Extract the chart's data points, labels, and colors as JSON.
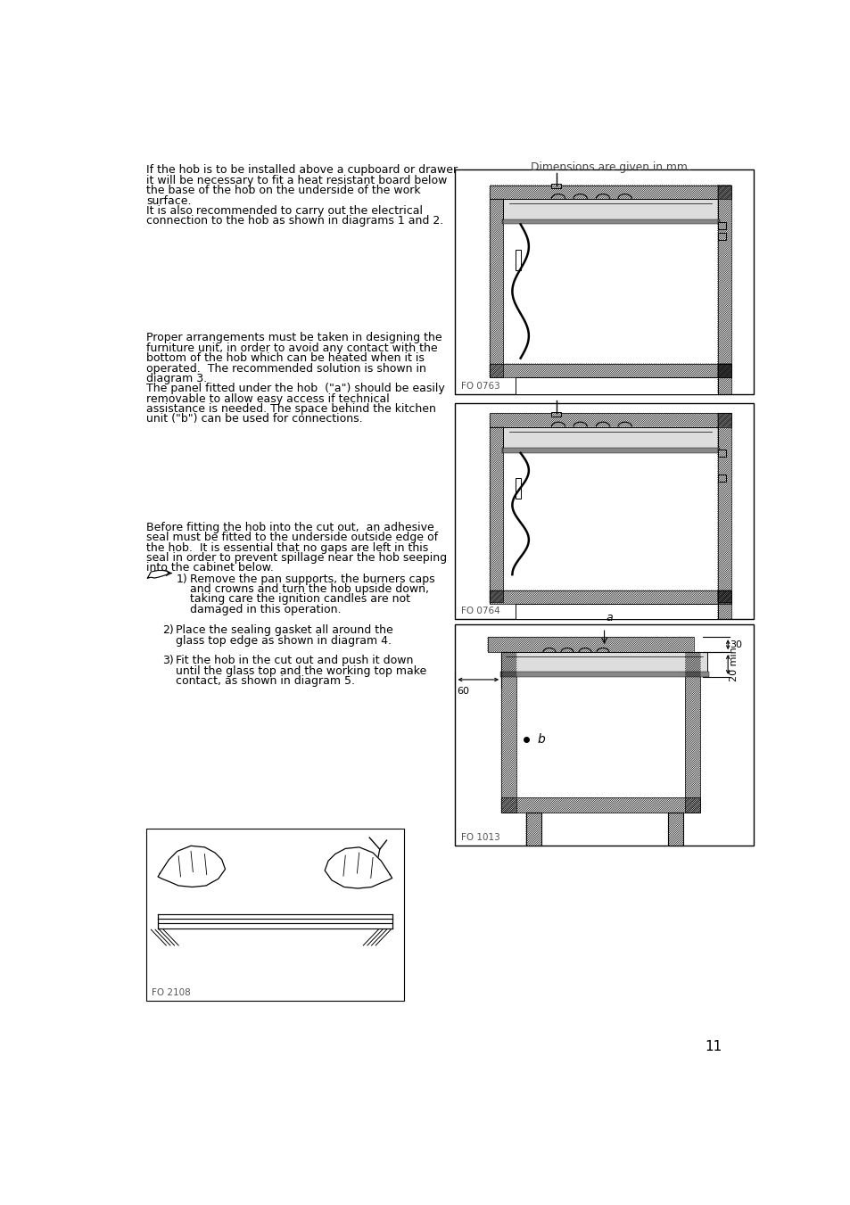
{
  "page_width": 9.54,
  "page_height": 13.51,
  "background_color": "#ffffff",
  "text_color": "#000000",
  "page_number": "11",
  "dim_text": "Dimensions are given in mm.",
  "diagram_labels": [
    "FO 0763",
    "FO 0764",
    "FO 1013",
    "FO 2108"
  ],
  "block1_text": [
    "If the hob is to be installed above a cupboard or drawer",
    "it will be necessary to fit a heat resistant board below",
    "the base of the hob on the underside of the work",
    "surface.",
    "It is also recommended to carry out the electrical",
    "connection to the hob as shown in diagrams 1 and 2."
  ],
  "block2_text": [
    "Proper arrangements must be taken in designing the",
    "furniture unit, in order to avoid any contact with the",
    "bottom of the hob which can be heated when it is",
    "operated.  The recommended solution is shown in",
    "diagram 3.",
    "The panel fitted under the hob  (\"a\") should be easily",
    "removable to allow easy access if technical",
    "assistance is needed. The space behind the kitchen",
    "unit (\"b\") can be used for connections."
  ],
  "block3_text": [
    "Before fitting the hob into the cut out,  an adhesive",
    "seal must be fitted to the underside outside edge of",
    "the hob.  It is essential that no gaps are left in this",
    "seal in order to prevent spillage near the hob seeping",
    "into the cabinet below."
  ],
  "item1_text": [
    "Remove the pan supports, the burners caps",
    "and crowns and turn the hob upside down,",
    "taking care the ignition candles are not",
    "damaged in this operation."
  ],
  "item2_text": [
    "Place the sealing gasket all around the",
    "glass top edge as shown in diagram 4."
  ],
  "item3_text": [
    "Fit the hob in the cut out and push it down",
    "until the glass top and the working top make",
    "contact, as shown in diagram 5."
  ]
}
